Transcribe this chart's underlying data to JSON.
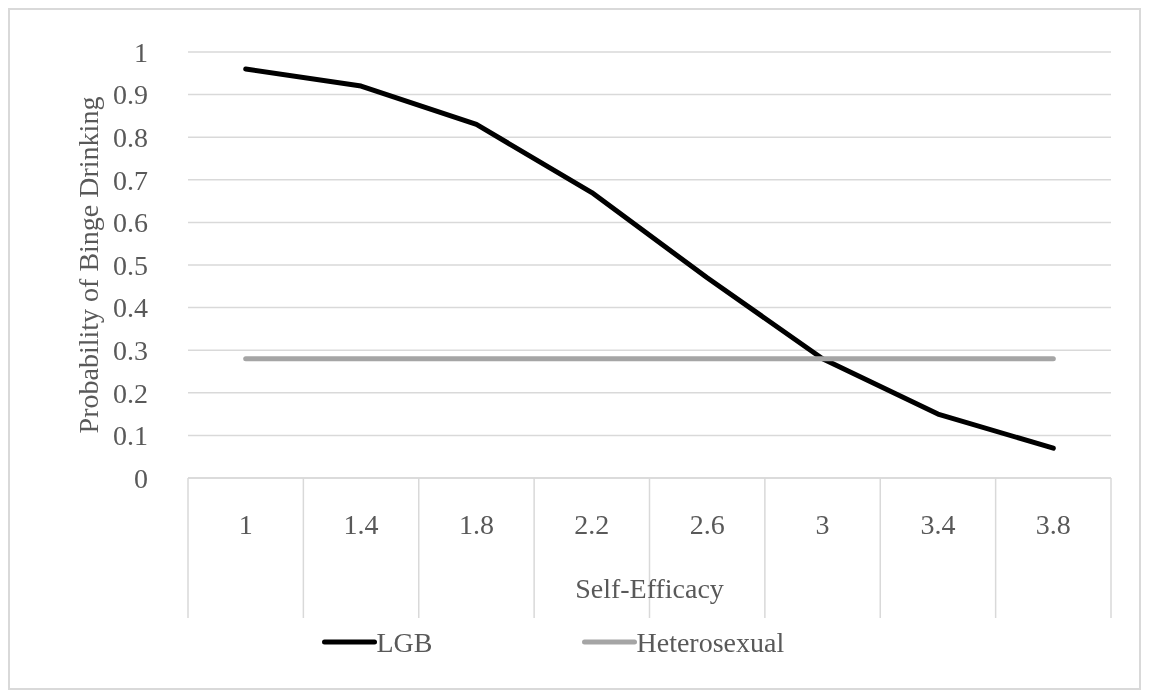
{
  "chart_data": {
    "type": "line",
    "xlabel": "Self-Efficacy",
    "ylabel": "Probability of Binge Drinking",
    "categories": [
      "1",
      "1.4",
      "1.8",
      "2.2",
      "2.6",
      "3",
      "3.4",
      "3.8"
    ],
    "series": [
      {
        "name": "LGB",
        "color": "#000000",
        "values": [
          0.96,
          0.92,
          0.83,
          0.67,
          0.47,
          0.28,
          0.15,
          0.07
        ]
      },
      {
        "name": "Heterosexual",
        "color": "#a5a5a5",
        "values": [
          0.28,
          0.28,
          0.28,
          0.28,
          0.28,
          0.28,
          0.28,
          0.28
        ]
      }
    ],
    "ylim": [
      0,
      1
    ],
    "yticks": [
      0,
      0.1,
      0.2,
      0.3,
      0.4,
      0.5,
      0.6,
      0.7,
      0.8,
      0.9,
      1
    ],
    "grid": "y",
    "legend": "bottom",
    "marker": "none",
    "line_style": "solid"
  }
}
